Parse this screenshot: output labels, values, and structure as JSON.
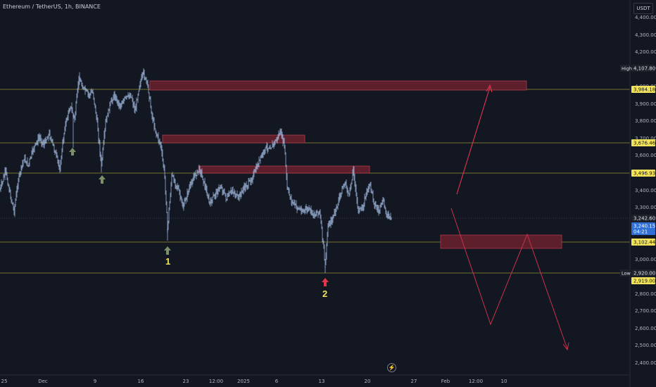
{
  "header": {
    "symbol_label": "Ethereum / TetherUS, 1h, BINANCE"
  },
  "price_scale": {
    "currency": "USDT",
    "ticks": [
      "4,400.00",
      "4,300.00",
      "4,200.00",
      "4,000.00",
      "3,900.00",
      "3,800.00",
      "3,700.00",
      "3,600.00",
      "3,400.00",
      "3,300.00",
      "3,000.00",
      "2,800.00",
      "2,700.00",
      "2,600.00",
      "2,500.00",
      "2,400.00"
    ],
    "badges": [
      {
        "text": "4,107.80",
        "side_label": "High",
        "style": "dark"
      },
      {
        "text": "3,984.18",
        "style": "yellow"
      },
      {
        "text": "3,676.46",
        "style": "yellow"
      },
      {
        "text": "3,496.93",
        "style": "yellow"
      },
      {
        "text": "3,242.60",
        "style": "dark"
      },
      {
        "text": "3,240.15",
        "sub": "04:21",
        "style": "blue"
      },
      {
        "text": "3,102.44",
        "style": "yellow"
      },
      {
        "text": "2,920.00",
        "side_label": "Low",
        "style": "dark"
      },
      {
        "text": "2,919.00",
        "style": "yellow"
      }
    ]
  },
  "time_axis": {
    "labels": [
      "25",
      "Dec",
      "9",
      "16",
      "23",
      "12:00",
      "2025",
      "6",
      "13",
      "20",
      "27",
      "Feb",
      "12:00",
      "10"
    ]
  },
  "annotations": {
    "marker_1": "1",
    "marker_2": "2"
  },
  "colors": {
    "background": "#131722",
    "candle": "#aec8f0",
    "level_line": "#b6b03a",
    "zone_fill": "#5c1f2b",
    "zone_stroke": "#b23a4d",
    "projection": "#e0344f",
    "arrow_green": "#7d8f6a",
    "arrow_red": "#e8344b",
    "label_yellow": "#f2e35a"
  },
  "icons": {
    "logo": "lightning-icon"
  }
}
